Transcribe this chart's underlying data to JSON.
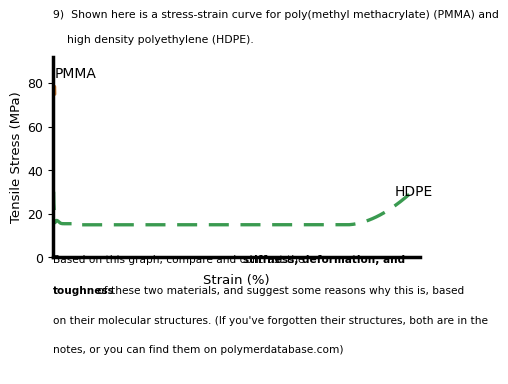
{
  "xlabel": "Strain (%)",
  "ylabel": "Tensile Stress (MPa)",
  "yticks": [
    0,
    20,
    40,
    60,
    80
  ],
  "pmma_color": "#C4732A",
  "hdpe_color": "#3A9A50",
  "pmma_label": "PMMA",
  "hdpe_label": "HDPE",
  "title_line1": "9)  Shown here is a stress-strain curve for poly(methyl methacrylate) (PMMA) and",
  "title_line2": "    high density polyethylene (HDPE).",
  "footer_line1_normal1": "Based on this graph, compare and contrast the ",
  "footer_line1_bold": "stiffness, deformation, and",
  "footer_line2_bold": "toughness",
  "footer_line2_normal": " of these two materials, and suggest some reasons why this is, based",
  "footer_line3": "on their molecular structures. (If you've forgotten their structures, both are in the",
  "footer_line4": "notes, or you can find them on polymerdatabase.com)",
  "bg_color": "#ffffff",
  "font_size_title": 7.8,
  "font_size_axis_label": 9.5,
  "font_size_tick": 9,
  "font_size_footer": 7.6,
  "font_size_curve_label": 10
}
